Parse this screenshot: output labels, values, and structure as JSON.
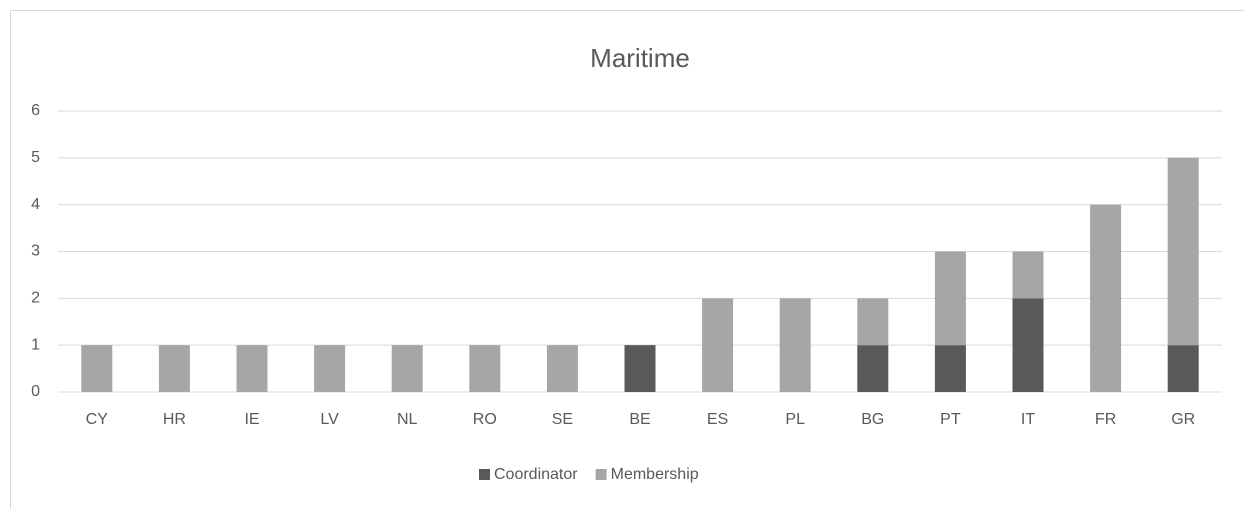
{
  "chart_data": {
    "type": "bar",
    "stacked": true,
    "title": "Maritime",
    "categories": [
      "CY",
      "HR",
      "IE",
      "LV",
      "NL",
      "RO",
      "SE",
      "BE",
      "ES",
      "PL",
      "BG",
      "PT",
      "IT",
      "FR",
      "GR"
    ],
    "series": [
      {
        "name": "Coordinator",
        "color": "#595959",
        "values": [
          0,
          0,
          0,
          0,
          0,
          0,
          0,
          1,
          0,
          0,
          1,
          1,
          2,
          0,
          1
        ]
      },
      {
        "name": "Membership",
        "color": "#a6a6a6",
        "values": [
          1,
          1,
          1,
          1,
          1,
          1,
          1,
          0,
          2,
          2,
          1,
          2,
          1,
          4,
          4
        ]
      }
    ],
    "ylim": [
      0,
      6
    ],
    "yticks": [
      0,
      1,
      2,
      3,
      4,
      5,
      6
    ],
    "grid": true,
    "legend": "bottom"
  }
}
